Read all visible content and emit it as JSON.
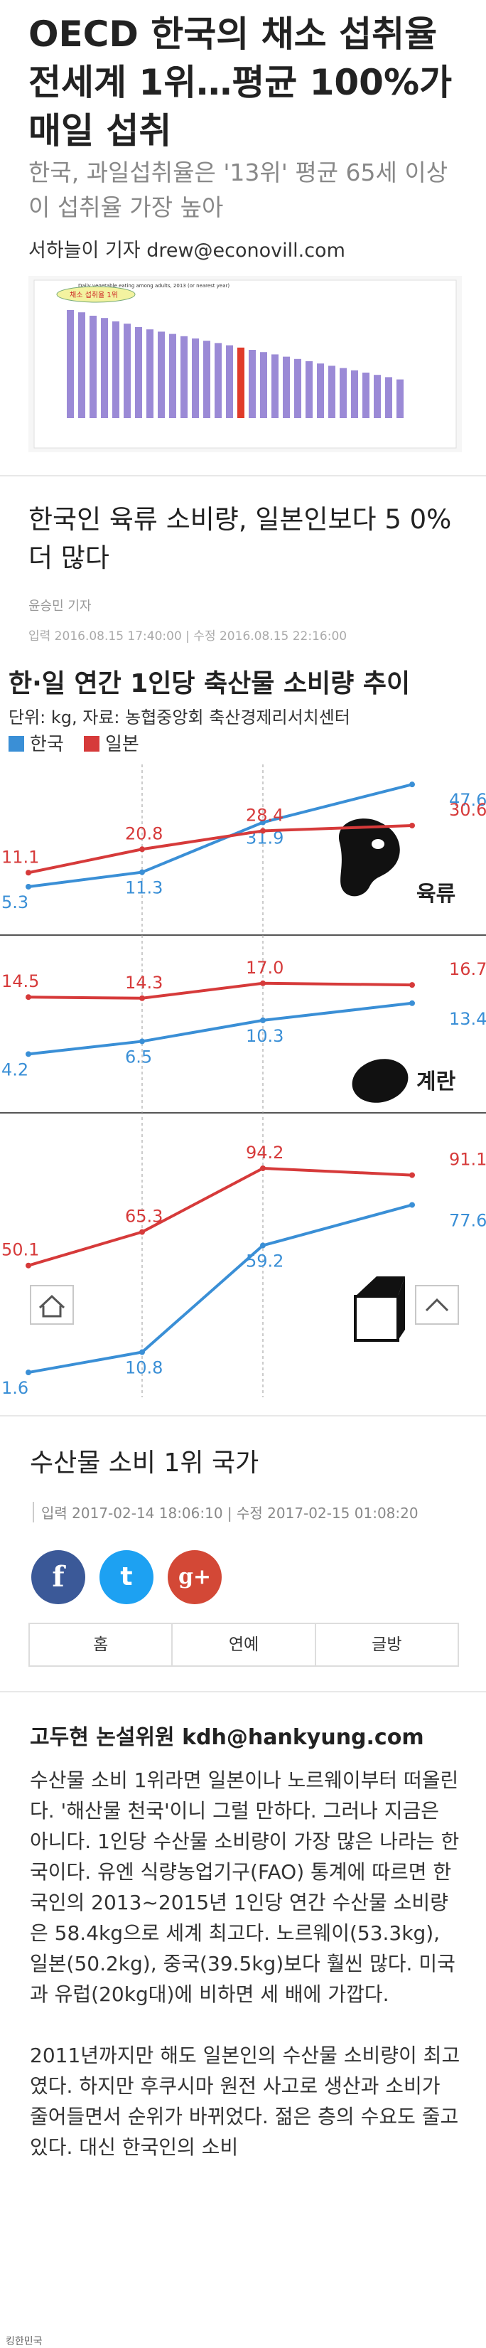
{
  "article1": {
    "title": "OECD 한국의 채소 섭취율 전세계 1위…평균 100%가 매일 섭취",
    "subtitle": "한국, 과일섭취율은 '13위' 평균 65세 이상이 섭취율 가장 높아",
    "byline": "서하늘이 기자 drew@econovill.com",
    "chart_caption": "Daily vegetable eating among adults, 2013 (or nearest year)",
    "chart_note": "채소 섭취율 1위"
  },
  "article2": {
    "title": "한국인 육류 소비량, 일본인보다 5 0% 더 많다",
    "reporter": "윤승민 기자",
    "meta": "입력 2016.08.15 17:40:00  |  수정 2016.08.15 22:16:00",
    "infographic": {
      "title": "한·일 연간 1인당 축산물 소비량 추이",
      "unit_source": "단위: kg, 자료: 농협중앙회 축산경제리서치센터",
      "legend_korea": "한국",
      "legend_japan": "일본",
      "panel_meat": "육류",
      "panel_egg": "계란",
      "panel_milk": "우유",
      "color_korea": "#3a8fd6",
      "color_japan": "#d63a3a"
    }
  },
  "chart_data": [
    {
      "type": "line",
      "title": "한·일 연간 1인당 축산물 소비량 추이",
      "subtitle": "육류",
      "ylabel": "kg",
      "series": [
        {
          "name": "한국",
          "values": [
            5.3,
            11.3,
            31.9,
            47.6
          ],
          "labels": [
            "5.3",
            "11.3",
            "31.9",
            "47.6"
          ]
        },
        {
          "name": "일본",
          "values": [
            11.1,
            20.8,
            28.4,
            30.6
          ],
          "labels": [
            "11.1",
            "20.8",
            "28.4",
            "30.6"
          ]
        }
      ]
    },
    {
      "type": "line",
      "subtitle": "계란",
      "ylabel": "kg",
      "series": [
        {
          "name": "한국",
          "values": [
            4.2,
            6.5,
            10.3,
            13.4
          ],
          "labels": [
            "4.2",
            "6.5",
            "10.3",
            "13.4"
          ]
        },
        {
          "name": "일본",
          "values": [
            14.5,
            14.3,
            17.0,
            16.7
          ],
          "labels": [
            "14.5",
            "14.3",
            "17.0",
            "16.7"
          ]
        }
      ]
    },
    {
      "type": "line",
      "subtitle": "우유",
      "ylabel": "kg",
      "series": [
        {
          "name": "한국",
          "values": [
            1.6,
            10.8,
            59.2,
            77.6
          ],
          "labels": [
            "1.6",
            "10.8",
            "59.2",
            "77.6"
          ]
        },
        {
          "name": "일본",
          "values": [
            50.1,
            65.3,
            94.2,
            91.1
          ],
          "labels": [
            "50.1",
            "65.3",
            "94.2",
            "91.1"
          ]
        }
      ]
    }
  ],
  "article3": {
    "title": "수산물 소비 1위 국가",
    "meta": "입력 2017-02-14 18:06:10  |  수정 2017-02-15 01:08:20",
    "share_facebook": "f",
    "share_twitter": "t",
    "share_google": "g+",
    "nav": [
      "홈",
      "연예",
      "글방"
    ],
    "author": "고두현 논설위원 kdh@hankyung.com",
    "body": [
      "수산물 소비 1위라면 일본이나 노르웨이부터 떠올린다. '해산물 천국'이니 그럴 만하다. 그러나 지금은 아니다. 1인당 수산물 소비량이 가장 많은 나라는 한국이다. 유엔 식량농업기구(FAO) 통계에 따르면 한국인의 2013~2015년 1인당 연간 수산물 소비량은 58.4kg으로 세계 최고다. 노르웨이(53.3kg), 일본(50.2kg), 중국(39.5kg)보다 훨씬 많다. 미국과 유럽(20kg대)에 비하면 세 배에 가깝다.",
      "2011년까지만 해도 일본인의 수산물 소비량이 최고였다. 하지만 후쿠시마 원전 사고로 생산과 소비가 줄어들면서 순위가 바뀌었다. 젊은 층의 수요도 줄고 있다. 대신 한국인의 소비"
    ]
  },
  "footer": {
    "watermark": "킹한민국"
  }
}
